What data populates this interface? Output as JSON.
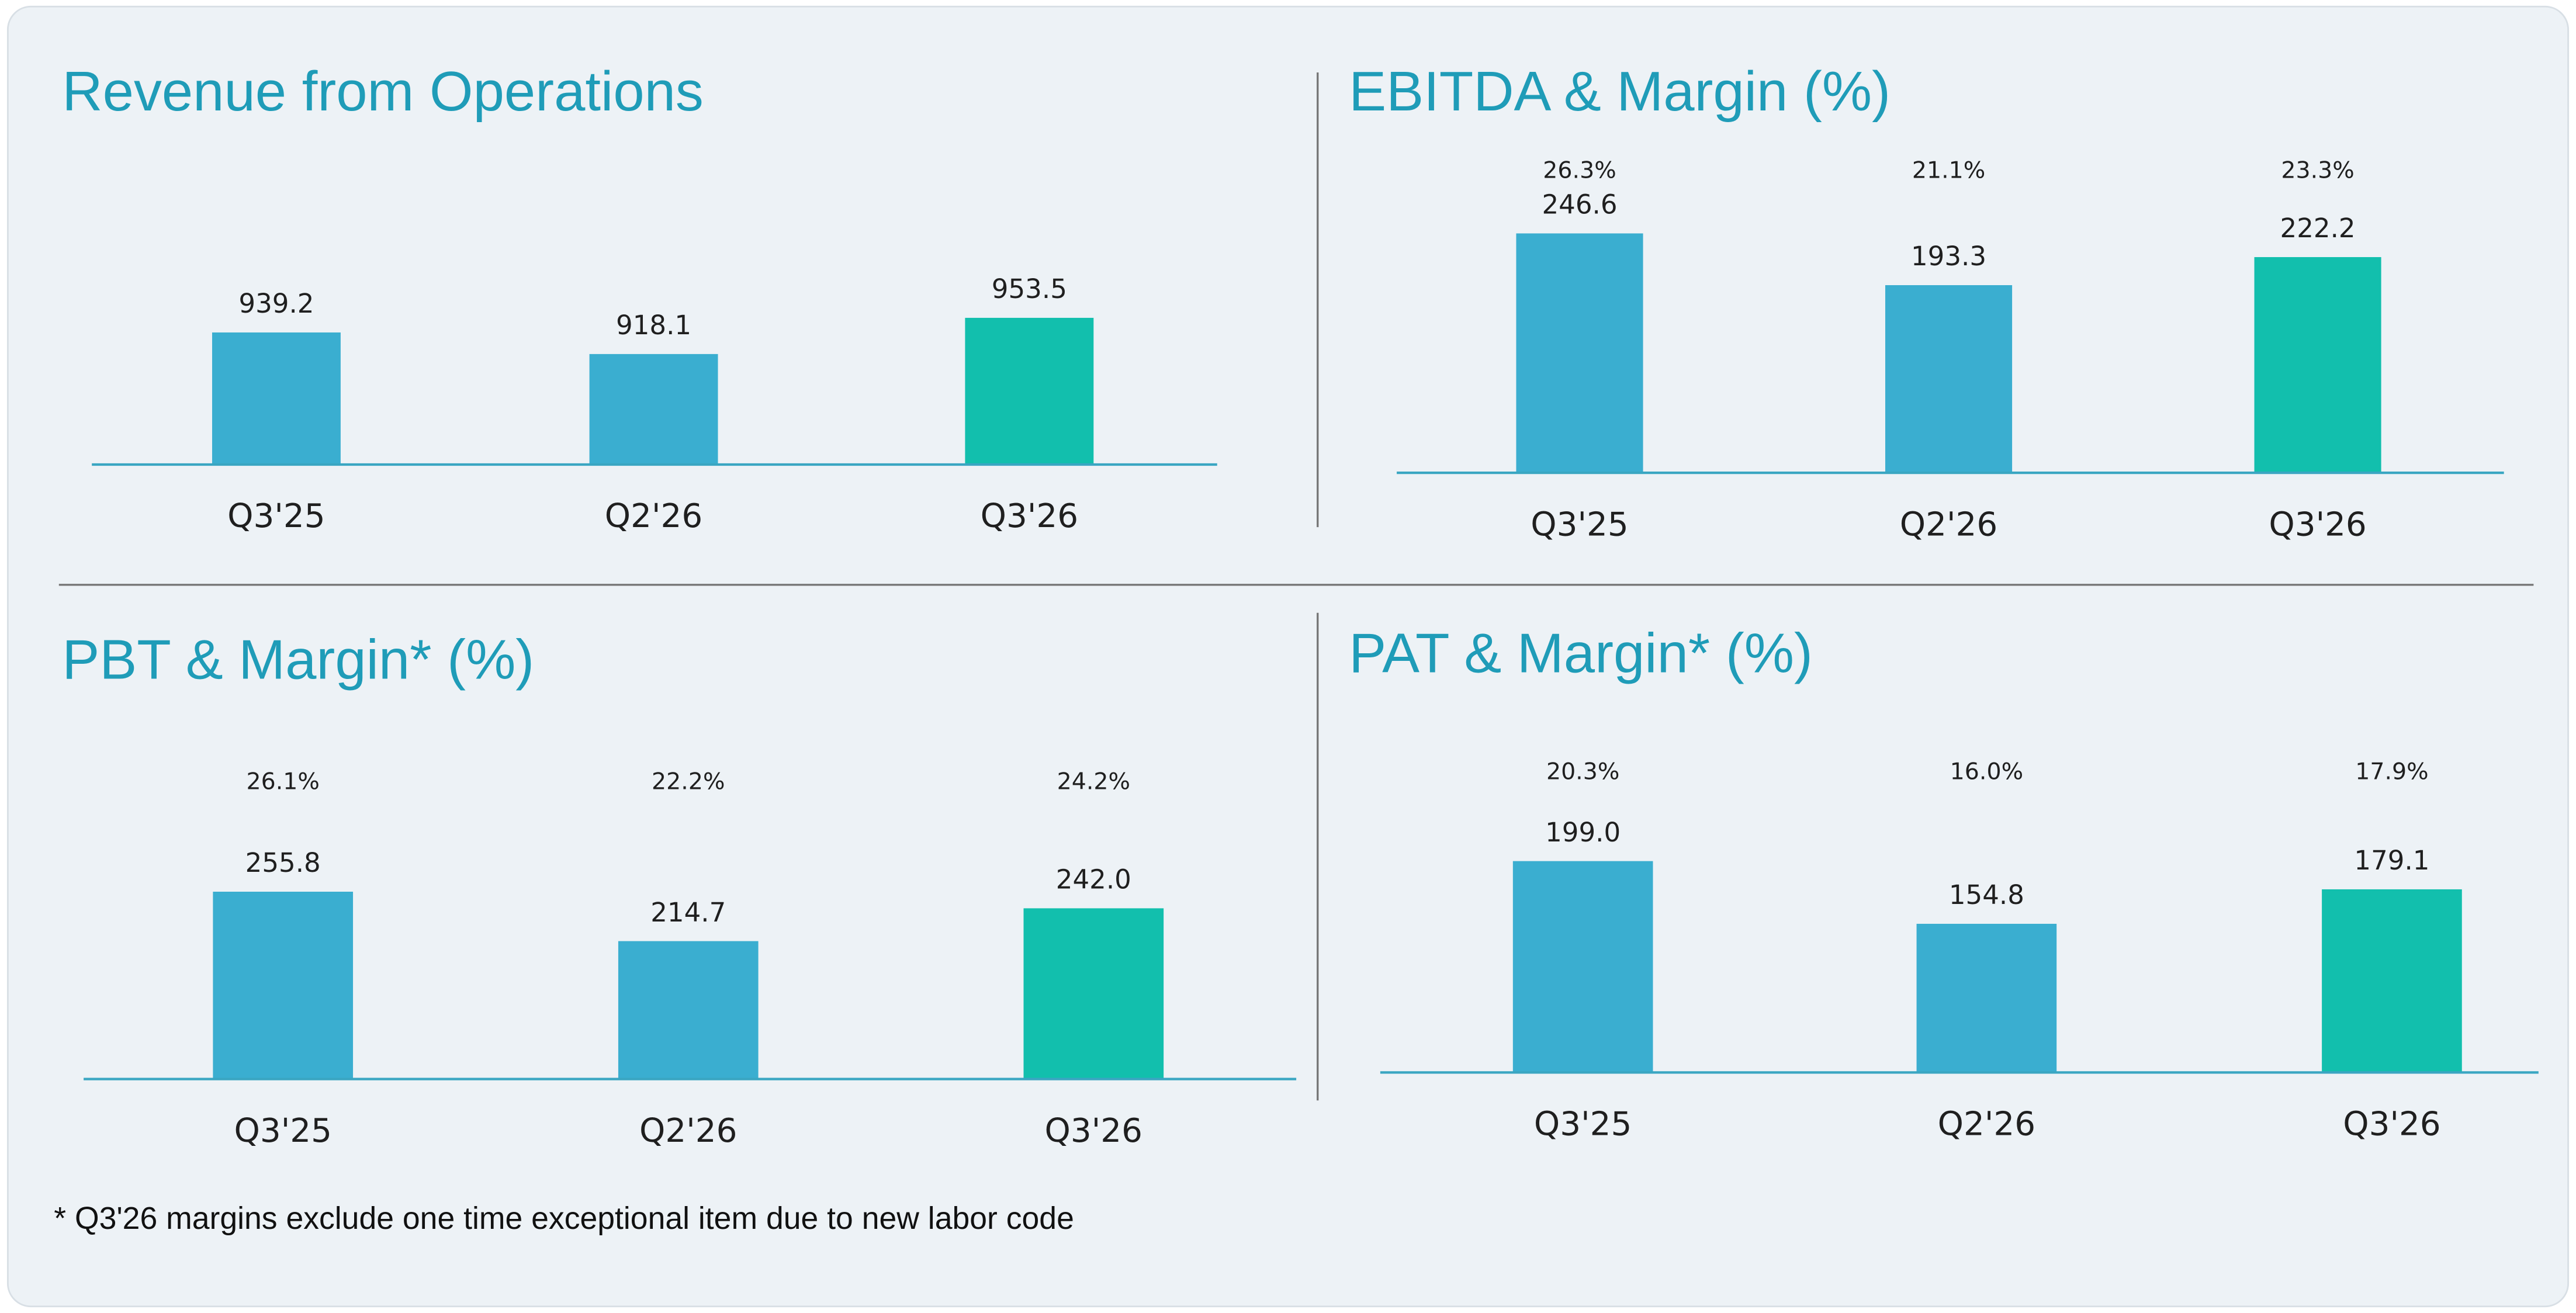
{
  "chart_data": [
    {
      "type": "bar",
      "title": "Revenue from Operations",
      "categories": [
        "Q3'25",
        "Q2'26",
        "Q3'26"
      ],
      "values": [
        939.2,
        918.1,
        953.5
      ],
      "colors": [
        "#3aaed0",
        "#3aaed0",
        "#12bfad"
      ],
      "ylim": [
        810,
        1100
      ]
    },
    {
      "type": "bar",
      "title": "EBITDA & Margin (%)",
      "categories": [
        "Q3'25",
        "Q2'26",
        "Q3'26"
      ],
      "values": [
        246.6,
        193.3,
        222.2
      ],
      "colors": [
        "#3aaed0",
        "#3aaed0",
        "#12bfad"
      ],
      "ylim": [
        0,
        280
      ],
      "margins": {
        "values": [
          26.3,
          21.1,
          23.3
        ],
        "value_labels": [
          "26.3%",
          "21.1%",
          "23.3%"
        ]
      }
    },
    {
      "type": "bar",
      "title": "PBT & Margin* (%)",
      "categories": [
        "Q3'25",
        "Q2'26",
        "Q3'26"
      ],
      "values": [
        255.8,
        214.7,
        242.0
      ],
      "value_labels": [
        "255.8",
        "214.7",
        "242.0"
      ],
      "colors": [
        "#3aaed0",
        "#3aaed0",
        "#12bfad"
      ],
      "ylim": [
        100,
        300
      ],
      "margins": {
        "values": [
          26.1,
          22.2,
          24.2
        ],
        "value_labels": [
          "26.1%",
          "22.2%",
          "24.2%"
        ]
      }
    },
    {
      "type": "bar",
      "title": "PAT & Margin* (%)",
      "categories": [
        "Q3'25",
        "Q2'26",
        "Q3'26"
      ],
      "values": [
        199.0,
        154.8,
        179.1
      ],
      "value_labels": [
        "199.0",
        "154.8",
        "179.1"
      ],
      "colors": [
        "#3aaed0",
        "#3aaed0",
        "#12bfad"
      ],
      "ylim": [
        50,
        230
      ],
      "margins": {
        "values": [
          20.3,
          16.0,
          17.9
        ],
        "value_labels": [
          "20.3%",
          "16.0%",
          "17.9%"
        ]
      }
    }
  ],
  "footnote": "* Q3'26 margins exclude one time exceptional item due to new labor code"
}
